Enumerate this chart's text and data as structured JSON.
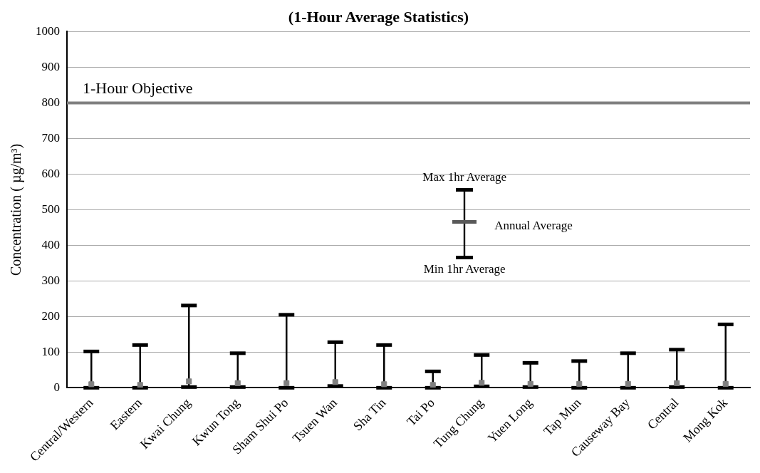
{
  "chart_data": {
    "type": "scatter",
    "title": "(1-Hour Average Statistics)",
    "ylabel": "Concentration ( µg/m³)",
    "categories": [
      "Central/Western",
      "Eastern",
      "Kwai Chung",
      "Kwun Tong",
      "Sham Shui Po",
      "Tsuen Wan",
      "Sha Tin",
      "Tai Po",
      "Tung Chung",
      "Yuen Long",
      "Tap Mun",
      "Causeway Bay",
      "Central",
      "Mong Kok"
    ],
    "series": [
      {
        "color": "#808080",
        "values": [
          10,
          8,
          18,
          13,
          13,
          16,
          10,
          8,
          14,
          11,
          11,
          11,
          13,
          11
        ],
        "errors": [
          [
            0,
            102
          ],
          [
            0,
            120
          ],
          [
            2,
            231
          ],
          [
            2,
            97
          ],
          [
            0,
            205
          ],
          [
            5,
            128
          ],
          [
            0,
            120
          ],
          [
            0,
            46
          ],
          [
            4,
            92
          ],
          [
            2,
            70
          ],
          [
            0,
            75
          ],
          [
            0,
            97
          ],
          [
            2,
            107
          ],
          [
            0,
            178
          ]
        ]
      }
    ],
    "ylim": [
      0,
      1000
    ],
    "yticks": [
      0,
      100,
      200,
      300,
      400,
      500,
      600,
      700,
      800,
      900,
      1000
    ],
    "grid": "y",
    "legend": false,
    "marker": "square",
    "ref_lines": [
      {
        "axis": "y",
        "value": 800,
        "label": "1-Hour Objective",
        "color": "#808080"
      }
    ],
    "annotations": [
      "Max 1hr Average",
      "Annual Average",
      "Min 1hr Average"
    ]
  }
}
